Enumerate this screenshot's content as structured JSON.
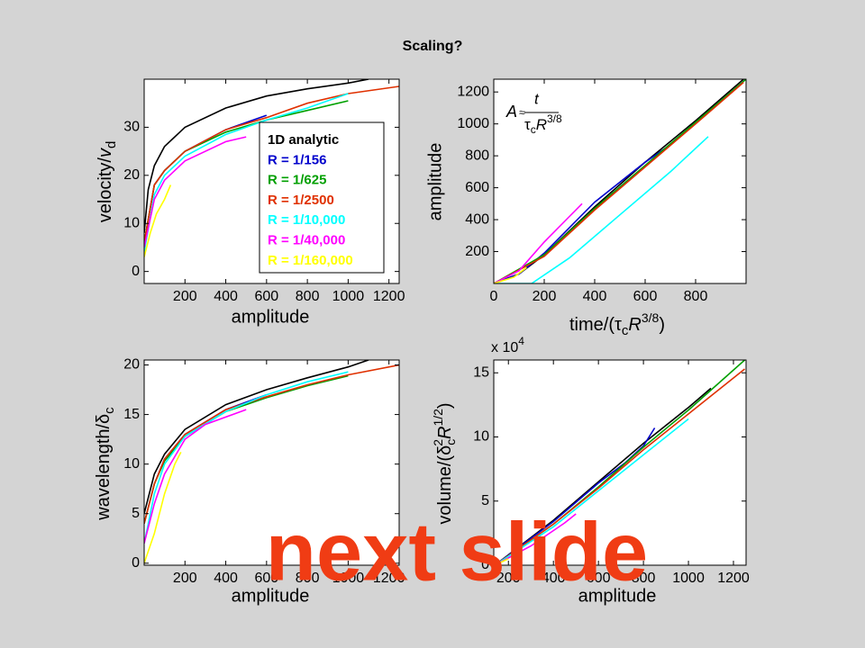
{
  "slide_title": "Scaling?",
  "overlay_text": "next slide",
  "chart_data": [
    {
      "type": "line",
      "xlabel": "amplitude",
      "ylabel": [
        "velocity/",
        "v",
        "d"
      ],
      "xlim": [
        0,
        1250
      ],
      "ylim": [
        -2.5,
        40
      ],
      "xticks": [
        200,
        400,
        600,
        800,
        1000,
        1200
      ],
      "yticks": [
        0,
        10,
        20,
        30
      ],
      "legend": "inside-right",
      "series": [
        {
          "name": "1D analytic",
          "color": "#000000",
          "x": [
            0,
            20,
            50,
            100,
            200,
            400,
            600,
            800,
            1000,
            1100
          ],
          "values": [
            8,
            17,
            22,
            26,
            30,
            34,
            36.5,
            38,
            39.2,
            40
          ]
        },
        {
          "name": "R = 1/156",
          "color": "#0000cc",
          "x": [
            0,
            50,
            100,
            200,
            400,
            600
          ],
          "values": [
            6,
            18,
            21,
            25,
            29.5,
            32.5
          ]
        },
        {
          "name": "R = 1/625",
          "color": "#00a000",
          "x": [
            0,
            50,
            100,
            200,
            400,
            600,
            800,
            1000
          ],
          "values": [
            6,
            18,
            21,
            25,
            29,
            31.5,
            33.5,
            35.5
          ]
        },
        {
          "name": "R = 1/2500",
          "color": "#e03000",
          "x": [
            0,
            50,
            100,
            200,
            400,
            600,
            800,
            1000,
            1250
          ],
          "values": [
            6,
            18,
            21,
            25,
            29.5,
            32,
            35,
            37,
            38.5
          ]
        },
        {
          "name": "R = 1/10,000",
          "color": "#00ffff",
          "x": [
            0,
            50,
            100,
            200,
            400,
            600,
            800,
            1000
          ],
          "values": [
            4,
            16,
            20,
            24,
            28.5,
            31.5,
            34,
            37
          ]
        },
        {
          "name": "R = 1/40,000",
          "color": "#ff00ff",
          "x": [
            0,
            50,
            100,
            200,
            400,
            500
          ],
          "values": [
            5,
            15,
            19,
            23,
            27,
            28
          ]
        },
        {
          "name": "R = 1/160,000",
          "color": "#ffff00",
          "x": [
            0,
            30,
            60,
            100,
            130
          ],
          "values": [
            3,
            8,
            12,
            15,
            18
          ]
        }
      ]
    },
    {
      "type": "line",
      "xlabel": [
        "time/(",
        "τ",
        "c",
        "R",
        "3/8",
        ")"
      ],
      "ylabel": "amplitude",
      "xlim": [
        0,
        1000
      ],
      "ylim": [
        0,
        1280
      ],
      "xticks": [
        0,
        200,
        400,
        600,
        800
      ],
      "yticks": [
        200,
        400,
        600,
        800,
        1000,
        1200
      ],
      "annotation": [
        "A",
        "≈",
        "t",
        "τ",
        "c",
        "R",
        "3/8"
      ],
      "series": [
        {
          "color": "#000000",
          "x": [
            0,
            100,
            200,
            400,
            600,
            800,
            990
          ],
          "values": [
            0,
            60,
            180,
            480,
            760,
            1020,
            1280
          ]
        },
        {
          "color": "#0000cc",
          "x": [
            0,
            100,
            200,
            400,
            600,
            710
          ],
          "values": [
            0,
            60,
            190,
            510,
            760,
            880
          ]
        },
        {
          "color": "#00a000",
          "x": [
            0,
            200,
            400,
            600,
            800,
            1000
          ],
          "values": [
            0,
            180,
            470,
            740,
            1010,
            1280
          ]
        },
        {
          "color": "#e03000",
          "x": [
            0,
            200,
            400,
            600,
            800,
            990
          ],
          "values": [
            0,
            170,
            460,
            730,
            1000,
            1260
          ]
        },
        {
          "color": "#00ffff",
          "x": [
            0,
            150,
            300,
            500,
            700,
            850
          ],
          "values": [
            0,
            0,
            160,
            430,
            700,
            920
          ]
        },
        {
          "color": "#ff00ff",
          "x": [
            0,
            100,
            200,
            300,
            350
          ],
          "values": [
            0,
            80,
            260,
            420,
            500
          ]
        },
        {
          "color": "#ffff00",
          "x": [
            0,
            80,
            130
          ],
          "values": [
            0,
            40,
            100
          ]
        }
      ]
    },
    {
      "type": "line",
      "xlabel": "amplitude",
      "ylabel": [
        "wavelength/",
        "δ",
        "c"
      ],
      "xlim": [
        0,
        1250
      ],
      "ylim": [
        -0.2,
        20.5
      ],
      "xticks": [
        200,
        400,
        600,
        800,
        1000,
        1200
      ],
      "yticks": [
        0,
        5,
        10,
        15,
        20
      ],
      "series": [
        {
          "color": "#000000",
          "x": [
            0,
            50,
            100,
            200,
            400,
            600,
            800,
            1000,
            1100
          ],
          "values": [
            5,
            9,
            11,
            13.5,
            16,
            17.5,
            18.7,
            19.8,
            20.5
          ]
        },
        {
          "color": "#0000cc",
          "x": [
            0,
            50,
            100,
            200,
            400,
            600
          ],
          "values": [
            4,
            8,
            10.5,
            13,
            15.5,
            17
          ]
        },
        {
          "color": "#00a000",
          "x": [
            0,
            50,
            100,
            200,
            400,
            600,
            800,
            1000
          ],
          "values": [
            4,
            8,
            10.3,
            12.8,
            15.3,
            16.7,
            17.9,
            18.9
          ]
        },
        {
          "color": "#e03000",
          "x": [
            0,
            50,
            100,
            200,
            400,
            600,
            800,
            1000,
            1250
          ],
          "values": [
            4,
            8,
            10.5,
            13,
            15.5,
            16.8,
            18,
            19,
            20
          ]
        },
        {
          "color": "#00ffff",
          "x": [
            0,
            50,
            100,
            200,
            400,
            600,
            800,
            1000
          ],
          "values": [
            2,
            7,
            10,
            12.8,
            15.3,
            17,
            18.3,
            19.3
          ]
        },
        {
          "color": "#ff00ff",
          "x": [
            0,
            50,
            100,
            200,
            300,
            500
          ],
          "values": [
            2,
            6,
            9,
            12.5,
            14,
            15.5
          ]
        },
        {
          "color": "#ffff00",
          "x": [
            0,
            50,
            100,
            150,
            180
          ],
          "values": [
            0,
            3,
            7,
            10,
            11.2
          ]
        }
      ]
    },
    {
      "type": "line",
      "xlabel": "amplitude",
      "ylabel": [
        "volume/(",
        "δ",
        "c",
        "2",
        "R",
        "1/2",
        ")"
      ],
      "multiplier": [
        "x 10",
        "4"
      ],
      "xlim": [
        135,
        1256
      ],
      "ylim": [
        0,
        16
      ],
      "xticks": [
        200,
        400,
        600,
        800,
        1000,
        1200
      ],
      "yticks": [
        0,
        5,
        10,
        15
      ],
      "series": [
        {
          "color": "#000000",
          "x": [
            140,
            400,
            600,
            800,
            1000,
            1100
          ],
          "values": [
            0,
            3.5,
            6.5,
            9.5,
            12.3,
            13.8
          ]
        },
        {
          "color": "#0000cc",
          "x": [
            140,
            400,
            600,
            720,
            800,
            850
          ],
          "values": [
            0,
            3.4,
            6.4,
            8,
            9.3,
            10.7
          ]
        },
        {
          "color": "#00a000",
          "x": [
            140,
            400,
            600,
            800,
            1000,
            1250
          ],
          "values": [
            0,
            3.2,
            6.1,
            9.2,
            12.1,
            16
          ]
        },
        {
          "color": "#e03000",
          "x": [
            140,
            400,
            600,
            800,
            1000,
            1250
          ],
          "values": [
            0,
            3.2,
            6,
            9,
            11.8,
            15.3
          ]
        },
        {
          "color": "#00ffff",
          "x": [
            140,
            400,
            600,
            800,
            1000
          ],
          "values": [
            0,
            3,
            5.8,
            8.6,
            11.4
          ]
        },
        {
          "color": "#ff00ff",
          "x": [
            140,
            300,
            450,
            500
          ],
          "values": [
            0,
            1.5,
            3.3,
            4
          ]
        },
        {
          "color": "#ffff00",
          "x": [
            140,
            200
          ],
          "values": [
            0,
            0.5
          ]
        }
      ]
    }
  ]
}
